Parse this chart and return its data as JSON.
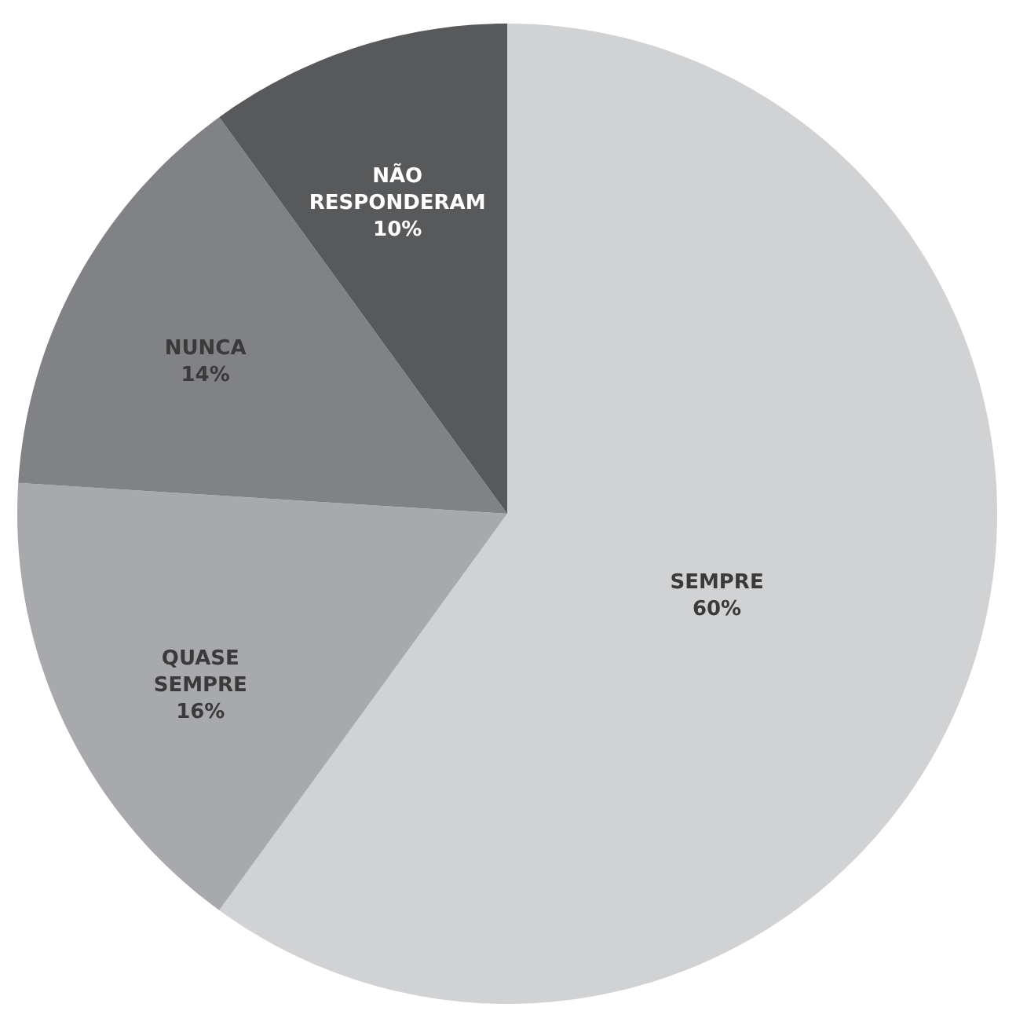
{
  "chart_data": {
    "type": "pie",
    "categories": [
      "SEMPRE",
      "QUASE SEMPRE",
      "NUNCA",
      "NÃO RESPONDERAM"
    ],
    "values": [
      60,
      16,
      14,
      10
    ],
    "colors": [
      "#d1d2d4",
      "#a7a9ac",
      "#808285",
      "#58595b"
    ],
    "value_labels": [
      "60%",
      "16%",
      "14%",
      "10%"
    ],
    "legend": false
  }
}
